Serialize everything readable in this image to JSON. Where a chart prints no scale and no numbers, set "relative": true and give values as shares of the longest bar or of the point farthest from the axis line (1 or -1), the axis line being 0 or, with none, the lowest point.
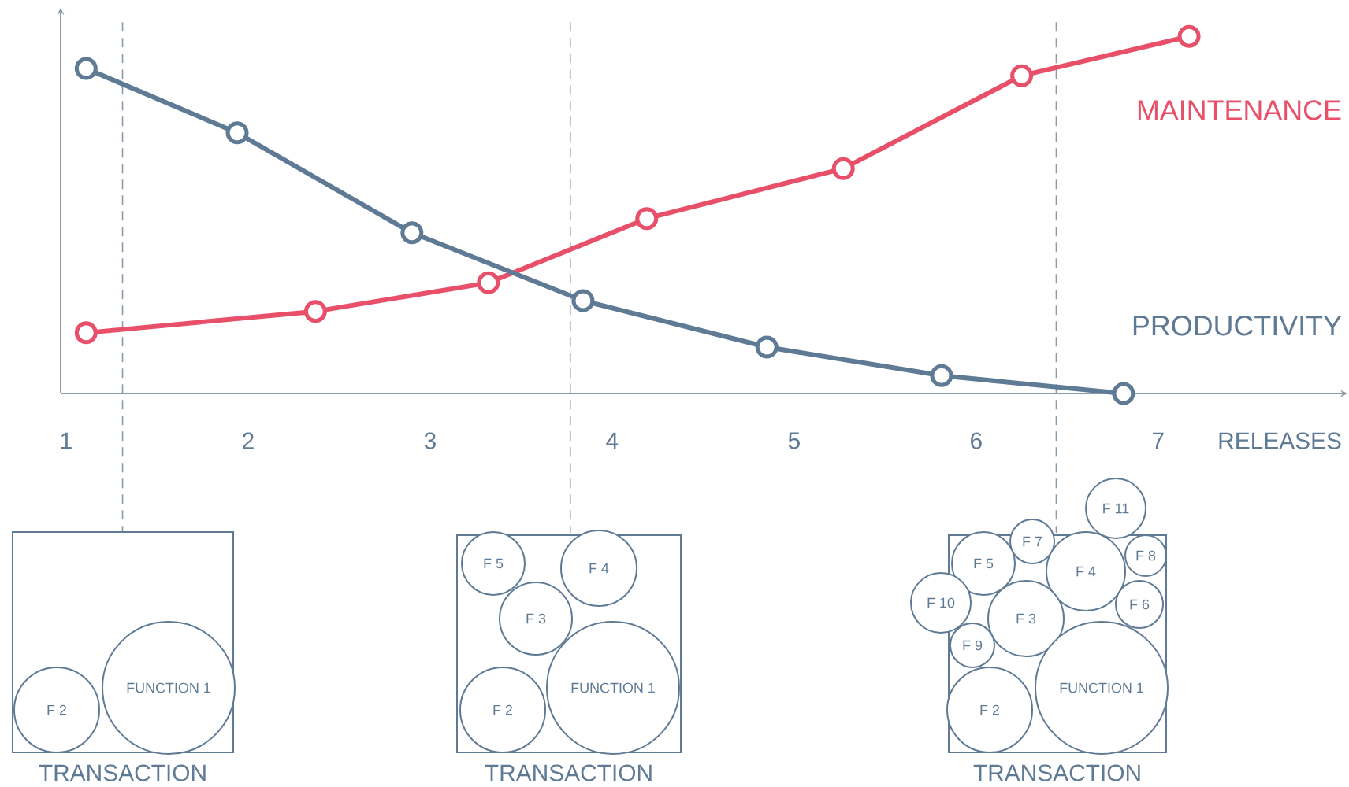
{
  "chart_data": {
    "type": "line",
    "relative": true,
    "xlabel": "RELEASES",
    "xlim": [
      0.97,
      8.04
    ],
    "xticks": [
      1,
      2,
      3,
      4,
      5,
      6,
      7
    ],
    "marker": "circle",
    "line_style": "solid",
    "legend": false,
    "grid": false,
    "series": [
      {
        "name": "MAINTENANCE",
        "color": "#e8506a",
        "x": [
          1.11,
          2.37,
          3.32,
          4.19,
          5.27,
          6.25,
          7.17
        ],
        "values": [
          0.17,
          0.23,
          0.31,
          0.49,
          0.63,
          0.89,
          1
        ]
      },
      {
        "name": "PRODUCTIVITY",
        "color": "#5f7a94",
        "x": [
          1.11,
          1.94,
          2.9,
          3.84,
          4.85,
          5.81,
          6.81
        ],
        "values": [
          0.91,
          0.73,
          0.45,
          0.26,
          0.13,
          0.05,
          0
        ]
      }
    ],
    "ref_lines": [
      {
        "axis": "x",
        "value": 1.31,
        "color": "#8a9aab",
        "line_style": "dashed"
      },
      {
        "axis": "x",
        "value": 3.77,
        "color": "#8a9aab",
        "line_style": "dashed"
      },
      {
        "axis": "x",
        "value": 6.44,
        "color": "#8a9aab",
        "line_style": "dashed"
      }
    ],
    "annotations": [
      "F 2",
      "FUNCTION 1",
      "TRANSACTION",
      "F 5",
      "F 4",
      "F 3",
      "F 2",
      "FUNCTION 1",
      "TRANSACTION",
      "F 11",
      "F 7",
      "F 5",
      "F 4",
      "F 8",
      "F 10",
      "F 3",
      "F 6",
      "F 9",
      "F 2",
      "FUNCTION 1",
      "TRANSACTION"
    ]
  }
}
